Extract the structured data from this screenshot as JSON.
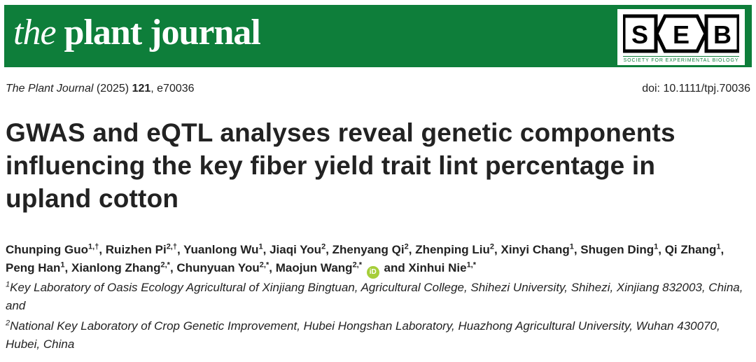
{
  "header": {
    "journal_the": "the",
    "journal_rest": "plant journal",
    "logo": {
      "letters": [
        "S",
        "E",
        "B"
      ],
      "subtitle": "SOCIETY FOR EXPERIMENTAL BIOLOGY",
      "icon": "seb-logo-icon"
    },
    "colors": {
      "banner": "#0e7e3a",
      "orcid": "#a6ce39"
    }
  },
  "citation": {
    "journal": "The Plant Journal",
    "year": "(2025)",
    "volume": "121",
    "article": ", e70036",
    "doi": "doi: 10.1111/tpj.70036"
  },
  "title": "GWAS and eQTL analyses reveal genetic components influencing the key fiber yield trait lint percentage in upland cotton",
  "authors": [
    {
      "name": "Chunping Guo",
      "sup": "1,†",
      "sep": ", "
    },
    {
      "name": "Ruizhen Pi",
      "sup": "2,†",
      "sep": ", "
    },
    {
      "name": "Yuanlong Wu",
      "sup": "1",
      "sep": ", "
    },
    {
      "name": "Jiaqi You",
      "sup": "2",
      "sep": ", "
    },
    {
      "name": "Zhenyang Qi",
      "sup": "2",
      "sep": ", "
    },
    {
      "name": "Zhenping Liu",
      "sup": "2",
      "sep": ", "
    },
    {
      "name": "Xinyi Chang",
      "sup": "1",
      "sep": ", "
    },
    {
      "name": "Shugen Ding",
      "sup": "1",
      "sep": ", "
    },
    {
      "name": "Qi Zhang",
      "sup": "1",
      "sep": ", "
    },
    {
      "name": "Peng Han",
      "sup": "1",
      "sep": ", "
    },
    {
      "name": "Xianlong Zhang",
      "sup": "2,*",
      "sep": ", "
    },
    {
      "name": "Chunyuan You",
      "sup": "2,*",
      "sep": ", "
    },
    {
      "name": "Maojun Wang",
      "sup": "2,*",
      "sep": " ",
      "orcid": true
    },
    {
      "name": "and Xinhui Nie",
      "sup": "1,*",
      "sep": ""
    }
  ],
  "orcid_label": "iD",
  "affiliations": [
    {
      "sup": "1",
      "text": "Key Laboratory of Oasis Ecology Agricultural of Xinjiang Bingtuan, Agricultural College, Shihezi University, Shihezi, Xinjiang 832003, China, and"
    },
    {
      "sup": "2",
      "text": "National Key Laboratory of Crop Genetic Improvement, Hubei Hongshan Laboratory, Huazhong Agricultural University, Wuhan 430070, Hubei, China"
    }
  ]
}
